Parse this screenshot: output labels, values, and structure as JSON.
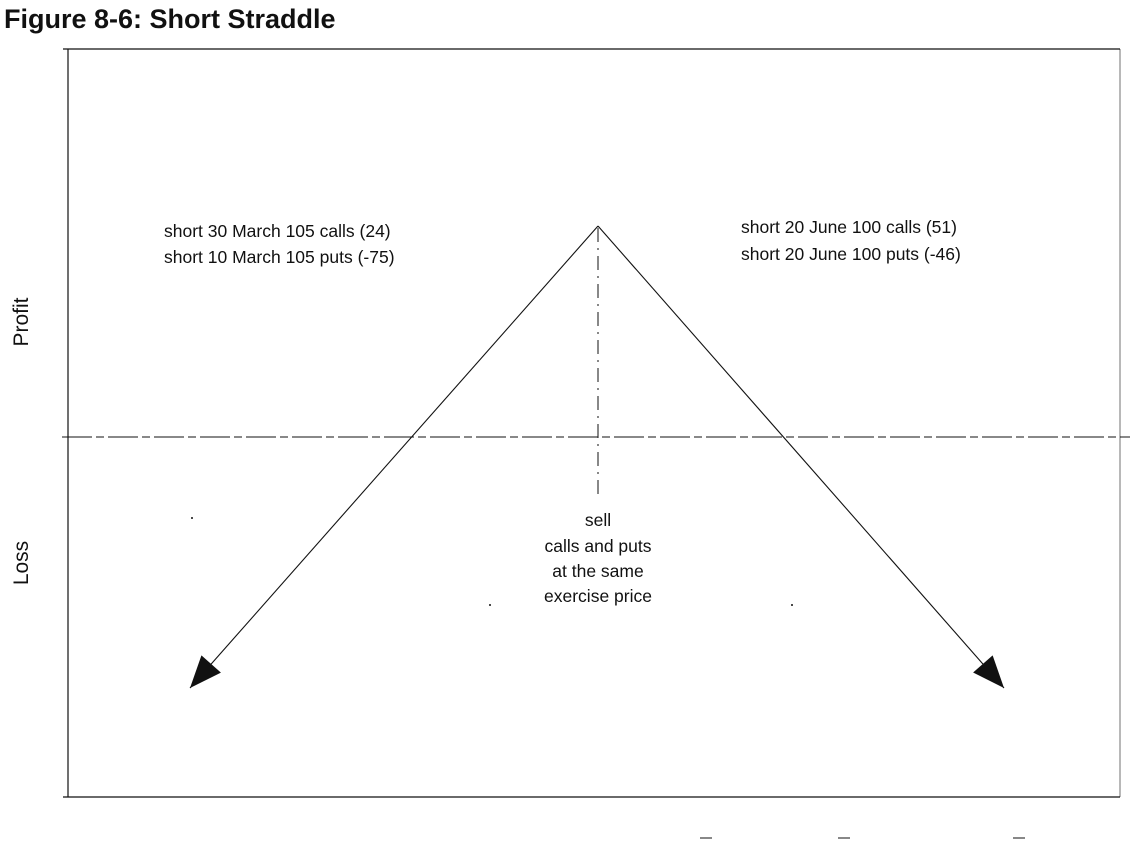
{
  "figure": {
    "title": "Figure 8-6: Short Straddle"
  },
  "axes": {
    "y_upper_label": "Profit",
    "y_lower_label": "Loss"
  },
  "annotations": {
    "left_line_1": "short 30 March 105 calls (24)",
    "left_line_2": "short 10 March 105 puts (-75)",
    "right_line_1": "short 20 June 100 calls (51)",
    "right_line_2": "short 20 June 100 puts (-46)",
    "center_line_1": "sell",
    "center_line_2": "calls and puts",
    "center_line_3": "at the same",
    "center_line_4": "exercise price"
  },
  "colors": {
    "ink": "#111111"
  }
}
